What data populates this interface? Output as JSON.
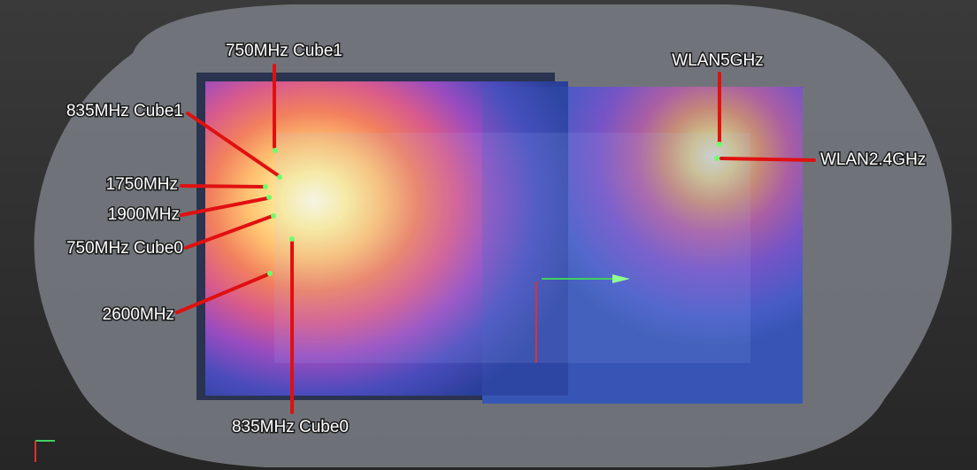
{
  "labels": [
    "750MHz Cube1",
    "835MHz Cube1",
    "1750MHz",
    "1900MHz",
    "750MHz Cube0",
    "2600MHz",
    "835MHz Cube0",
    "WLAN5GHz",
    "WLAN2.4GHz"
  ]
}
